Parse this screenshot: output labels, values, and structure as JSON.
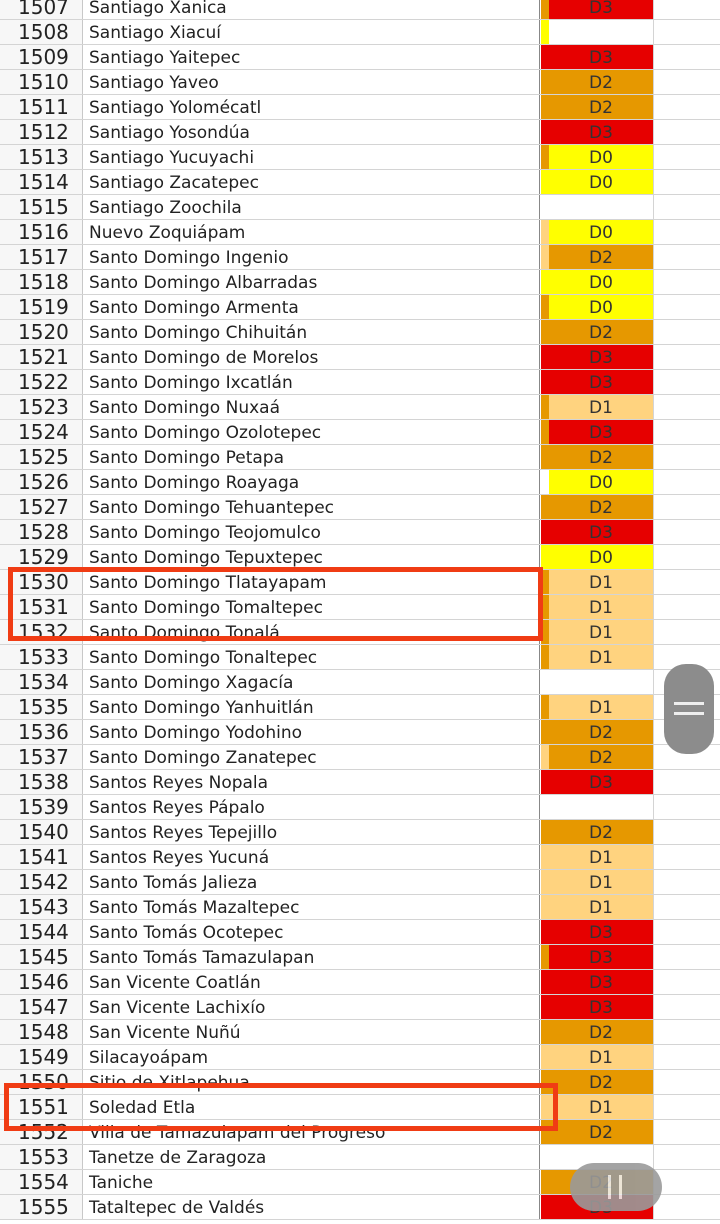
{
  "colors": {
    "D0": "#ffff00",
    "D1": "#ffd37f",
    "D2": "#e69800",
    "D3": "#e60000"
  },
  "rows": [
    {
      "num": 1507,
      "name": "Santiago Xanica",
      "level": "D3",
      "strip": "D2"
    },
    {
      "num": 1508,
      "name": "Santiago Xiacuí",
      "level": null,
      "strip": "D0"
    },
    {
      "num": 1509,
      "name": "Santiago Yaitepec",
      "level": "D3",
      "strip": "D3"
    },
    {
      "num": 1510,
      "name": "Santiago Yaveo",
      "level": "D2",
      "strip": "D2"
    },
    {
      "num": 1511,
      "name": "Santiago Yolomécatl",
      "level": "D2",
      "strip": "D2"
    },
    {
      "num": 1512,
      "name": "Santiago Yosondúa",
      "level": "D3",
      "strip": "D3"
    },
    {
      "num": 1513,
      "name": "Santiago Yucuyachi",
      "level": "D0",
      "strip": "D2"
    },
    {
      "num": 1514,
      "name": "Santiago Zacatepec",
      "level": "D0",
      "strip": "D0"
    },
    {
      "num": 1515,
      "name": "Santiago Zoochila",
      "level": null,
      "strip": null
    },
    {
      "num": 1516,
      "name": "Nuevo Zoquiápam",
      "level": "D0",
      "strip": "D1"
    },
    {
      "num": 1517,
      "name": "Santo Domingo Ingenio",
      "level": "D2",
      "strip": "D1"
    },
    {
      "num": 1518,
      "name": "Santo Domingo Albarradas",
      "level": "D0",
      "strip": "D0"
    },
    {
      "num": 1519,
      "name": "Santo Domingo Armenta",
      "level": "D0",
      "strip": "D2"
    },
    {
      "num": 1520,
      "name": "Santo Domingo Chihuitán",
      "level": "D2",
      "strip": "D2"
    },
    {
      "num": 1521,
      "name": "Santo Domingo de Morelos",
      "level": "D3",
      "strip": "D3"
    },
    {
      "num": 1522,
      "name": "Santo Domingo Ixcatlán",
      "level": "D3",
      "strip": "D3"
    },
    {
      "num": 1523,
      "name": "Santo Domingo Nuxaá",
      "level": "D1",
      "strip": "D2"
    },
    {
      "num": 1524,
      "name": "Santo Domingo Ozolotepec",
      "level": "D3",
      "strip": "D2"
    },
    {
      "num": 1525,
      "name": "Santo Domingo Petapa",
      "level": "D2",
      "strip": "D2"
    },
    {
      "num": 1526,
      "name": "Santo Domingo Roayaga",
      "level": "D0",
      "strip": null
    },
    {
      "num": 1527,
      "name": "Santo Domingo Tehuantepec",
      "level": "D2",
      "strip": "D2"
    },
    {
      "num": 1528,
      "name": "Santo Domingo Teojomulco",
      "level": "D3",
      "strip": "D3"
    },
    {
      "num": 1529,
      "name": "Santo Domingo Tepuxtepec",
      "level": "D0",
      "strip": "D0"
    },
    {
      "num": 1530,
      "name": "Santo Domingo Tlatayapam",
      "level": "D1",
      "strip": "D2"
    },
    {
      "num": 1531,
      "name": "Santo Domingo Tomaltepec",
      "level": "D1",
      "strip": "D2"
    },
    {
      "num": 1532,
      "name": "Santo Domingo Tonalá",
      "level": "D1",
      "strip": "D2"
    },
    {
      "num": 1533,
      "name": "Santo Domingo Tonaltepec",
      "level": "D1",
      "strip": "D2"
    },
    {
      "num": 1534,
      "name": "Santo Domingo Xagacía",
      "level": null,
      "strip": null
    },
    {
      "num": 1535,
      "name": "Santo Domingo Yanhuitlán",
      "level": "D1",
      "strip": "D2"
    },
    {
      "num": 1536,
      "name": "Santo Domingo Yodohino",
      "level": "D2",
      "strip": "D2"
    },
    {
      "num": 1537,
      "name": "Santo Domingo Zanatepec",
      "level": "D2",
      "strip": "D1"
    },
    {
      "num": 1538,
      "name": "Santos Reyes Nopala",
      "level": "D3",
      "strip": "D3"
    },
    {
      "num": 1539,
      "name": "Santos Reyes Pápalo",
      "level": null,
      "strip": null
    },
    {
      "num": 1540,
      "name": "Santos Reyes Tepejillo",
      "level": "D2",
      "strip": "D2"
    },
    {
      "num": 1541,
      "name": "Santos Reyes Yucuná",
      "level": "D1",
      "strip": "D1"
    },
    {
      "num": 1542,
      "name": "Santo Tomás Jalieza",
      "level": "D1",
      "strip": "D1"
    },
    {
      "num": 1543,
      "name": "Santo Tomás Mazaltepec",
      "level": "D1",
      "strip": "D1"
    },
    {
      "num": 1544,
      "name": "Santo Tomás Ocotepec",
      "level": "D3",
      "strip": "D3"
    },
    {
      "num": 1545,
      "name": "Santo Tomás Tamazulapan",
      "level": "D3",
      "strip": "D2"
    },
    {
      "num": 1546,
      "name": "San Vicente Coatlán",
      "level": "D3",
      "strip": "D3"
    },
    {
      "num": 1547,
      "name": "San Vicente Lachixío",
      "level": "D3",
      "strip": "D3"
    },
    {
      "num": 1548,
      "name": "San Vicente Nuñú",
      "level": "D2",
      "strip": "D2"
    },
    {
      "num": 1549,
      "name": "Silacayoápam",
      "level": "D1",
      "strip": "D1"
    },
    {
      "num": 1550,
      "name": "Sitio de Xitlapehua",
      "level": "D2",
      "strip": "D2"
    },
    {
      "num": 1551,
      "name": "Soledad Etla",
      "level": "D1",
      "strip": "D1"
    },
    {
      "num": 1552,
      "name": "Villa de Tamazulapam del Progreso",
      "level": "D2",
      "strip": "D2"
    },
    {
      "num": 1553,
      "name": "Tanetze de Zaragoza",
      "level": null,
      "strip": null
    },
    {
      "num": 1554,
      "name": "Taniche",
      "level": "D2",
      "strip": "D2"
    },
    {
      "num": 1555,
      "name": "Tataltepec de Valdés",
      "level": "D3",
      "strip": "D3"
    }
  ]
}
